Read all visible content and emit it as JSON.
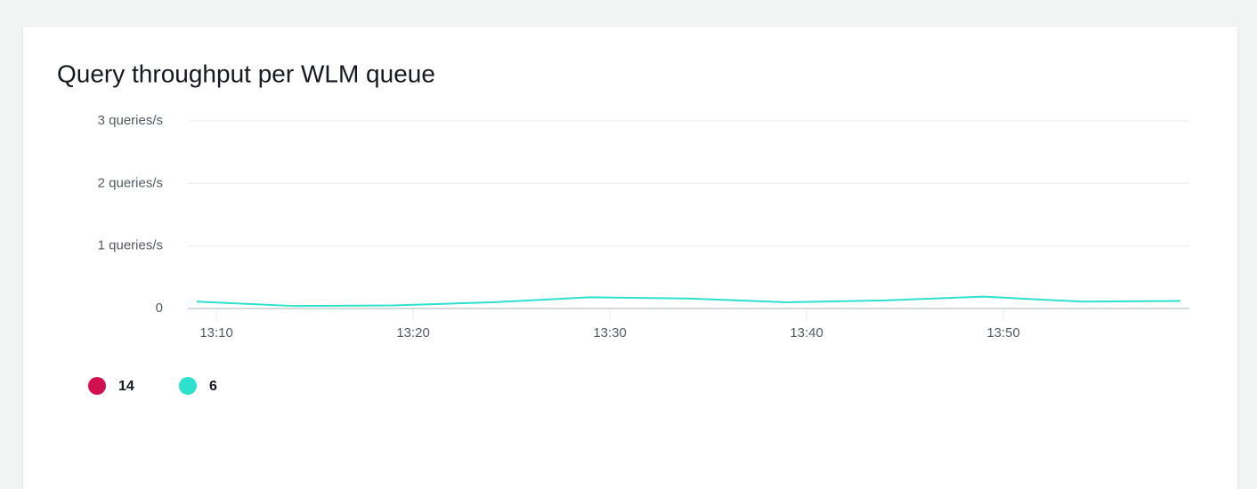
{
  "chart_data": {
    "type": "line",
    "title": "Query throughput per WLM queue",
    "x": [
      "13:09",
      "13:14",
      "13:19",
      "13:24",
      "13:29",
      "13:34",
      "13:39",
      "13:44",
      "13:49",
      "13:54",
      "13:59"
    ],
    "series": [
      {
        "name": "14",
        "color": "#d0104f",
        "values": [
          null,
          null,
          null,
          null,
          null,
          null,
          null,
          null,
          null,
          null,
          null
        ]
      },
      {
        "name": "6",
        "color": "#2ee0ce",
        "values": [
          0.11,
          0.04,
          0.05,
          0.1,
          0.18,
          0.16,
          0.1,
          0.13,
          0.19,
          0.11,
          0.12
        ]
      }
    ],
    "xlim": [
      "13:09",
      "13:59"
    ],
    "xticks": [
      "13:10",
      "13:20",
      "13:30",
      "13:40",
      "13:50"
    ],
    "ylim": [
      0,
      3
    ],
    "yticks": [
      0,
      {
        "value": 1,
        "label": "1 queries/s"
      },
      {
        "value": 2,
        "label": "2 queries/s"
      },
      {
        "value": 3,
        "label": "3 queries/s"
      }
    ],
    "grid": true
  }
}
